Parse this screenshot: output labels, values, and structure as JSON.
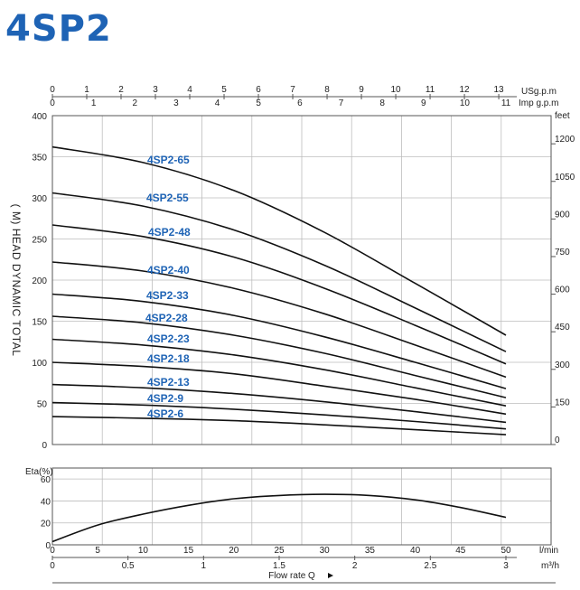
{
  "title": "4SP2",
  "chart_data": [
    {
      "type": "line",
      "ylabel": "( M) HEAD DYNAMIC TOTAL",
      "ylim": [
        0,
        400
      ],
      "xlim": [
        0,
        50
      ],
      "grid": true,
      "y_ticks": [
        "0",
        "50",
        "100",
        "150",
        "200",
        "250",
        "300",
        "350",
        "400"
      ],
      "feet_unit": "feet",
      "feet_ticks": [
        "0",
        "150",
        "300",
        "450",
        "600",
        "750",
        "900",
        "1050",
        "1200"
      ],
      "usgpm_unit": "USg.p.m",
      "usgpm_ticks": [
        "0",
        "1",
        "2",
        "3",
        "4",
        "5",
        "6",
        "7",
        "8",
        "9",
        "10",
        "11",
        "12",
        "13"
      ],
      "impgpm_unit": "Imp g.p.m",
      "impgpm_ticks": [
        "0",
        "1",
        "2",
        "3",
        "4",
        "5",
        "6",
        "7",
        "8",
        "9",
        "10",
        "11"
      ],
      "series": [
        {
          "name": "4SP2-65",
          "x": [
            0,
            10,
            20,
            30,
            40,
            50
          ],
          "y": [
            362,
            343,
            309,
            258,
            196,
            133
          ]
        },
        {
          "name": "4SP2-55",
          "x": [
            0,
            10,
            20,
            30,
            40,
            50
          ],
          "y": [
            306,
            290,
            261,
            218,
            166,
            113
          ]
        },
        {
          "name": "4SP2-48",
          "x": [
            0,
            10,
            20,
            30,
            40,
            50
          ],
          "y": [
            267,
            253,
            228,
            190,
            145,
            98
          ]
        },
        {
          "name": "4SP2-40",
          "x": [
            0,
            10,
            20,
            30,
            40,
            50
          ],
          "y": [
            222,
            211,
            190,
            159,
            121,
            82
          ]
        },
        {
          "name": "4SP2-33",
          "x": [
            0,
            10,
            20,
            30,
            40,
            50
          ],
          "y": [
            183,
            174,
            157,
            131,
            100,
            68
          ]
        },
        {
          "name": "4SP2-28",
          "x": [
            0,
            10,
            20,
            30,
            40,
            50
          ],
          "y": [
            156,
            148,
            133,
            111,
            84,
            57
          ]
        },
        {
          "name": "4SP2-23",
          "x": [
            0,
            10,
            20,
            30,
            40,
            50
          ],
          "y": [
            128,
            121,
            109,
            91,
            69,
            47
          ]
        },
        {
          "name": "4SP2-18",
          "x": [
            0,
            10,
            20,
            30,
            40,
            50
          ],
          "y": [
            100,
            95,
            86,
            71,
            55,
            37
          ]
        },
        {
          "name": "4SP2-13",
          "x": [
            0,
            10,
            20,
            30,
            40,
            50
          ],
          "y": [
            73,
            69,
            62,
            52,
            40,
            27
          ]
        },
        {
          "name": "4SP2-9",
          "x": [
            0,
            10,
            20,
            30,
            40,
            50
          ],
          "y": [
            51,
            48,
            43,
            36,
            28,
            19
          ]
        },
        {
          "name": "4SP2-6",
          "x": [
            0,
            10,
            20,
            30,
            40,
            50
          ],
          "y": [
            34,
            32,
            29,
            24,
            18,
            12
          ]
        }
      ]
    },
    {
      "type": "line",
      "ylabel": "Eta(%)",
      "xlabel": "Flow rate Q",
      "ylim": [
        0,
        70
      ],
      "xlim": [
        0,
        50
      ],
      "grid": true,
      "y_ticks": [
        "0",
        "20",
        "40",
        "60"
      ],
      "lmin_unit": "l/min",
      "lmin_ticks": [
        "0",
        "5",
        "10",
        "15",
        "20",
        "25",
        "30",
        "35",
        "40",
        "45",
        "50"
      ],
      "m3h_unit": "m³/h",
      "m3h_ticks": [
        "0",
        "0.5",
        "1",
        "1.5",
        "2",
        "2.5",
        "3"
      ],
      "series": [
        {
          "name": "",
          "x": [
            0,
            5,
            10,
            15,
            20,
            25,
            30,
            35,
            40,
            45,
            50
          ],
          "y": [
            3,
            18,
            28,
            36,
            42,
            45,
            46,
            45,
            41,
            34,
            25
          ]
        }
      ]
    }
  ]
}
